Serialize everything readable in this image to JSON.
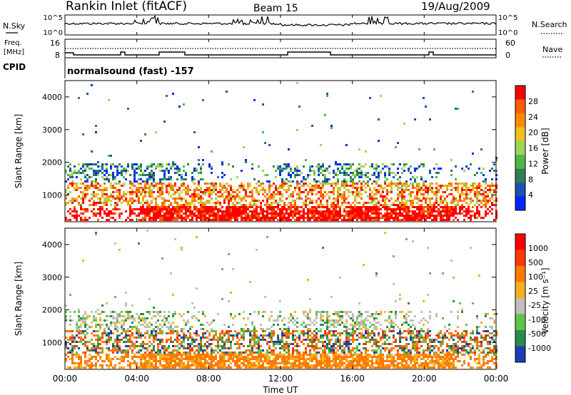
{
  "header": {
    "station": "Rankin Inlet (fitACF)",
    "beam": "Beam 15",
    "date": "19/Aug/2009"
  },
  "top_panels": {
    "nsky": {
      "label": "N.Sky",
      "ticks": [
        "10^5",
        "10^0"
      ]
    },
    "nsearch": {
      "label": "N.Search",
      "ticks": [
        "10^5",
        "10^0"
      ]
    },
    "freq": {
      "label": "Freq.",
      "unit": "[MHz]",
      "ticks": [
        "16",
        "8"
      ]
    },
    "nave": {
      "label": "Nave",
      "ticks": [
        "60",
        "0"
      ]
    },
    "cpid": {
      "label": "CPID",
      "program": "normalsound (fast) -157"
    }
  },
  "x_axis": {
    "label": "Time UT",
    "ticks": [
      "00:00",
      "04:00",
      "08:00",
      "12:00",
      "16:00",
      "20:00",
      "00:00"
    ]
  },
  "chart_data": [
    {
      "type": "heatmap",
      "title": "Power",
      "ylabel": "Slant Range [km]",
      "xlabel": "",
      "ylim": [
        180,
        4500
      ],
      "yticks": [
        "4000",
        "3000",
        "2000",
        "1000"
      ],
      "colorbar": {
        "label": "Power [dB]",
        "ticks": [
          "28",
          "24",
          "20",
          "16",
          "12",
          "8",
          "4"
        ],
        "colors": [
          "#0026ff",
          "#1c51b0",
          "#2e7f52",
          "#4db849",
          "#9fd45a",
          "#f0c020",
          "#ff8c00",
          "#ff5a00",
          "#ff0000"
        ]
      }
    },
    {
      "type": "heatmap",
      "title": "Velocity",
      "ylabel": "Slant Range [km]",
      "xlabel": "Time UT",
      "ylim": [
        180,
        4500
      ],
      "yticks": [
        "4000",
        "3000",
        "2000",
        "1000"
      ],
      "colorbar": {
        "label": "Velocity [m s⁻¹]",
        "ticks": [
          "1000",
          "500",
          "100",
          "25",
          "-25",
          "-100",
          "-500",
          "-1000"
        ],
        "colors": [
          "#1c3fb0",
          "#2a8c4a",
          "#5ec44a",
          "#c0c0b8",
          "#f5b020",
          "#ff7a00",
          "#ff3800",
          "#ff0000"
        ]
      }
    }
  ]
}
